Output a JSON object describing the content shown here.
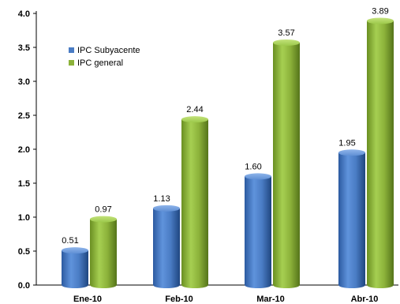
{
  "chart_data": {
    "type": "bar",
    "categories": [
      "Ene-10",
      "Feb-10",
      "Mar-10",
      "Abr-10"
    ],
    "series": [
      {
        "name": "IPC Subyacente",
        "values": [
          0.51,
          1.13,
          1.6,
          1.95
        ],
        "labels": [
          "0.51",
          "1.13",
          "1.60",
          "1.95"
        ],
        "color": "#4a7cc4"
      },
      {
        "name": "IPC general",
        "values": [
          0.97,
          2.44,
          3.57,
          3.89
        ],
        "labels": [
          "0.97",
          "2.44",
          "3.57",
          "3.89"
        ],
        "color": "#8cb23a"
      }
    ],
    "yticks": [
      "0.0",
      "0.5",
      "1.0",
      "1.5",
      "2.0",
      "2.5",
      "3.0",
      "3.5",
      "4.0"
    ],
    "ylim": [
      0,
      4.0
    ],
    "legend_position": "top-left",
    "grid": false,
    "style": "3d-cylinder"
  }
}
